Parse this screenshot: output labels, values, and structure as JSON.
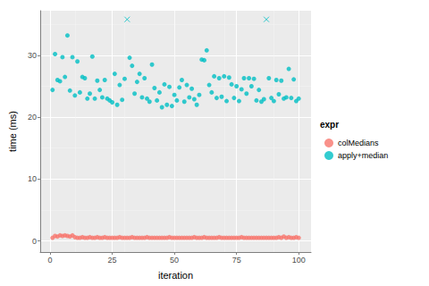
{
  "chart_data": {
    "type": "scatter",
    "x_label": "iteration",
    "y_label": "time (ms)",
    "legend_title": "expr",
    "legend": "right",
    "grid": true,
    "xlim": [
      -3.95,
      104.95
    ],
    "xticks": [
      0,
      25,
      50,
      75,
      100
    ],
    "ylim": [
      -1.8,
      37.2
    ],
    "yticks": [
      0,
      10,
      20,
      30
    ],
    "series": [
      {
        "name": "colMedians",
        "color": "#F8766D",
        "marker": "circle",
        "x": [
          1,
          2,
          3,
          4,
          5,
          6,
          7,
          8,
          9,
          10,
          11,
          12,
          13,
          14,
          15,
          16,
          17,
          18,
          19,
          20,
          21,
          22,
          23,
          24,
          25,
          26,
          27,
          28,
          29,
          30,
          31,
          32,
          33,
          34,
          35,
          36,
          37,
          38,
          39,
          40,
          41,
          42,
          43,
          44,
          45,
          46,
          47,
          48,
          49,
          50,
          51,
          52,
          53,
          54,
          55,
          56,
          57,
          58,
          59,
          60,
          61,
          62,
          63,
          64,
          65,
          66,
          67,
          68,
          69,
          70,
          71,
          72,
          73,
          74,
          75,
          76,
          77,
          78,
          79,
          80,
          81,
          82,
          83,
          84,
          85,
          86,
          87,
          88,
          89,
          90,
          91,
          92,
          93,
          94,
          95,
          96,
          97,
          98,
          99,
          100
        ],
        "values": [
          0.5,
          0.8,
          0.7,
          0.9,
          0.8,
          0.9,
          0.8,
          0.7,
          0.9,
          0.6,
          0.5,
          0.5,
          0.6,
          0.5,
          0.5,
          0.6,
          0.5,
          0.5,
          0.6,
          0.5,
          0.5,
          0.6,
          0.5,
          0.5,
          0.5,
          0.5,
          0.5,
          0.6,
          0.5,
          0.5,
          0.5,
          0.5,
          0.6,
          0.5,
          0.5,
          0.5,
          0.5,
          0.5,
          0.6,
          0.5,
          0.5,
          0.5,
          0.5,
          0.5,
          0.5,
          0.5,
          0.5,
          0.6,
          0.5,
          0.5,
          0.5,
          0.5,
          0.5,
          0.5,
          0.5,
          0.5,
          0.5,
          0.6,
          0.5,
          0.5,
          0.5,
          0.6,
          0.5,
          0.5,
          0.5,
          0.5,
          0.5,
          0.6,
          0.5,
          0.5,
          0.5,
          0.5,
          0.5,
          0.5,
          0.5,
          0.5,
          0.6,
          0.5,
          0.5,
          0.5,
          0.5,
          0.5,
          0.5,
          0.5,
          0.5,
          0.5,
          0.5,
          0.5,
          0.5,
          0.5,
          0.5,
          0.6,
          0.5,
          0.7,
          0.5,
          0.6,
          0.5,
          0.5,
          0.6,
          0.5
        ]
      },
      {
        "name": "apply+median",
        "color": "#00BFC4",
        "marker": "circle",
        "x": [
          1,
          2,
          3,
          4,
          5,
          6,
          7,
          8,
          9,
          10,
          11,
          12,
          13,
          14,
          15,
          16,
          17,
          18,
          19,
          20,
          21,
          22,
          23,
          24,
          25,
          26,
          27,
          28,
          29,
          30,
          32,
          33,
          34,
          35,
          36,
          37,
          38,
          39,
          40,
          41,
          42,
          43,
          44,
          45,
          46,
          47,
          48,
          49,
          50,
          51,
          52,
          53,
          54,
          55,
          56,
          57,
          58,
          59,
          60,
          61,
          62,
          63,
          64,
          65,
          66,
          67,
          68,
          69,
          70,
          71,
          72,
          73,
          74,
          75,
          76,
          77,
          78,
          79,
          80,
          81,
          82,
          83,
          84,
          85,
          86,
          88,
          89,
          90,
          91,
          92,
          93,
          94,
          95,
          96,
          97,
          98,
          99,
          100
        ],
        "values": [
          24.4,
          30.2,
          26,
          25.8,
          29.7,
          26.5,
          33.2,
          24.3,
          29.7,
          23.5,
          29,
          24,
          26.5,
          26.3,
          23,
          23.8,
          29.8,
          23,
          25.9,
          24.4,
          23.2,
          26,
          23,
          22.7,
          22.4,
          27,
          22,
          25.2,
          22.8,
          26.2,
          29.6,
          28.3,
          23.8,
          25.7,
          27,
          23.2,
          26.3,
          23,
          22.5,
          28.5,
          24.7,
          22.7,
          24,
          21.6,
          25.3,
          22,
          24.9,
          21.8,
          23.6,
          22.7,
          24.8,
          26,
          22.5,
          25.2,
          23.2,
          24.6,
          22.9,
          22,
          23.6,
          29.3,
          29.2,
          30.8,
          25.2,
          24,
          26.6,
          23.1,
          26.3,
          23.3,
          26.6,
          22.6,
          26.4,
          25.3,
          23.1,
          25,
          22.6,
          24.5,
          26.3,
          23.8,
          26.3,
          25,
          26.2,
          22.7,
          24.4,
          22.5,
          22.9,
          26.3,
          23.1,
          22.6,
          26,
          23.7,
          25.9,
          23,
          23.2,
          27.8,
          23.1,
          26.1,
          22.6,
          23
        ]
      },
      {
        "color": "#00BFC4",
        "marker": "x",
        "x": [
          31,
          87
        ],
        "values": [
          35.8,
          35.8
        ]
      }
    ]
  }
}
